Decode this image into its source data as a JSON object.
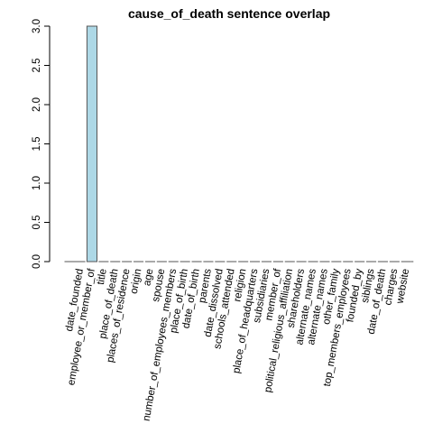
{
  "chart_data": {
    "type": "bar",
    "title": "cause_of_death sentence overlap",
    "xlabel": "",
    "ylabel": "",
    "ylim": [
      0,
      3
    ],
    "yticks": [
      "0.0",
      "0.5",
      "1.0",
      "1.5",
      "2.0",
      "2.5",
      "3.0"
    ],
    "categories": [
      "date_founded",
      "employee_or_member_of",
      "title",
      "place_of_death",
      "places_of_residence",
      "origin",
      "age",
      "spouse",
      "number_of_employees_members",
      "place_of_birth",
      "date_of_birth",
      "parents",
      "date_dissolved",
      "schools_attended",
      "religion",
      "place_of_headquarters",
      "subsidiaries",
      "member_of",
      "political_religious_affiliation",
      "shareholders",
      "alternate_names",
      "alternate_names",
      "other_family",
      "top_members_employees",
      "founded_by",
      "siblings",
      "date_of_death",
      "charges",
      "website"
    ],
    "values": [
      0,
      3,
      0,
      0,
      0,
      0,
      0,
      0,
      0,
      0,
      0,
      0,
      0,
      0,
      0,
      0,
      0,
      0,
      0,
      0,
      0,
      0,
      0,
      0,
      0,
      0,
      0,
      0,
      0
    ],
    "colors": {
      "bar_fill": "#add8e6",
      "bar_stroke": "#555555",
      "axis": "#000000"
    },
    "grid": false,
    "legend": "none"
  }
}
